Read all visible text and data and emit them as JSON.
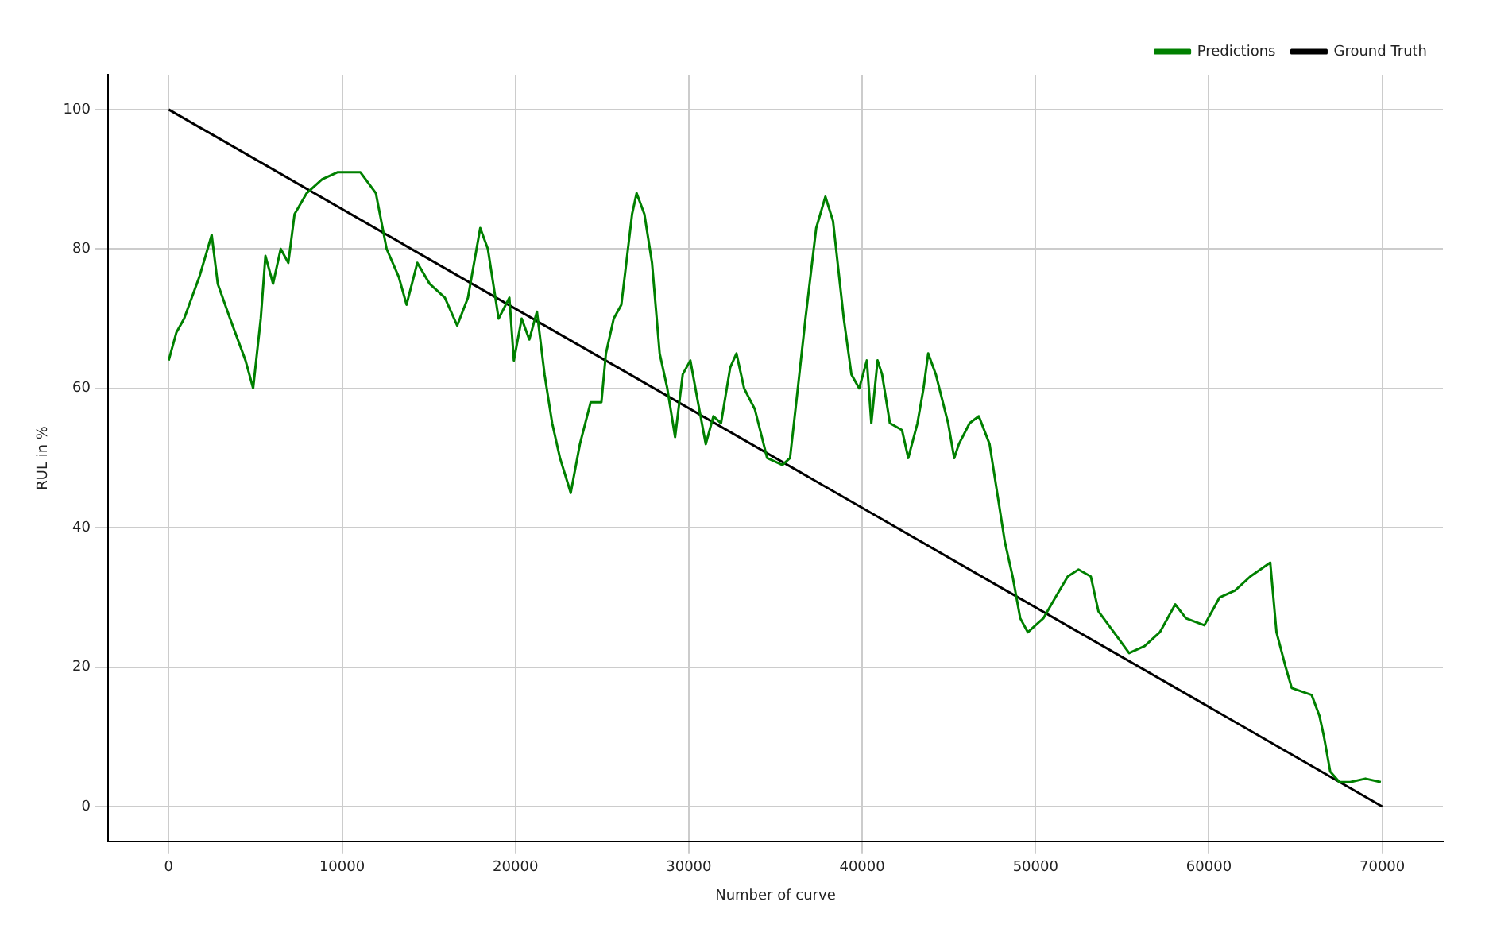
{
  "chart_data": {
    "type": "line",
    "xlabel": "Number of curve",
    "ylabel": "RUL in %",
    "xlim": [
      -3500,
      73500
    ],
    "xticks": [
      0,
      10000,
      20000,
      30000,
      40000,
      50000,
      60000,
      70000
    ],
    "ylim": [
      -5,
      105
    ],
    "yticks": [
      0,
      20,
      40,
      60,
      80,
      100
    ],
    "grid": true,
    "legend": "top right",
    "marker": "none",
    "line_style": "solid",
    "series": [
      {
        "name": "Predictions",
        "color": "#008000",
        "x": [
          0,
          440,
          890,
          1770,
          2480,
          2830,
          3540,
          4430,
          4870,
          5310,
          5580,
          6020,
          6460,
          6900,
          7260,
          7960,
          8850,
          9730,
          11060,
          11950,
          12570,
          13270,
          13720,
          14340,
          15050,
          15930,
          16640,
          17260,
          17970,
          18410,
          19030,
          19650,
          19910,
          20360,
          20800,
          21240,
          21680,
          22120,
          22570,
          23190,
          23720,
          24340,
          24960,
          25220,
          25670,
          26110,
          26730,
          26990,
          27440,
          27880,
          28320,
          28760,
          29210,
          29650,
          30090,
          30530,
          30980,
          31420,
          31860,
          32390,
          32750,
          33190,
          33810,
          34520,
          35400,
          35840,
          36290,
          36730,
          37350,
          37880,
          38320,
          38940,
          39380,
          39830,
          40270,
          40530,
          40890,
          41150,
          41600,
          42300,
          42660,
          43190,
          43540,
          43810,
          44250,
          44960,
          45310,
          45580,
          46200,
          46730,
          47350,
          47790,
          48230,
          48680,
          49120,
          49560,
          50000,
          50450,
          51150,
          51860,
          52480,
          53190,
          53630,
          54520,
          55400,
          56290,
          57170,
          58060,
          58680,
          59740,
          60620,
          61510,
          62390,
          63540,
          63900,
          64430,
          64780,
          65930,
          66380,
          66640,
          67000,
          67530,
          68150,
          69030,
          69920
        ],
        "values": [
          64,
          68,
          70,
          76,
          82,
          75,
          70,
          64,
          60,
          70,
          79,
          75,
          80,
          78,
          85,
          88,
          90,
          91,
          91,
          88,
          80,
          76,
          72,
          78,
          75,
          73,
          69,
          73,
          83,
          80,
          70,
          73,
          64,
          70,
          67,
          71,
          62,
          55,
          50,
          45,
          52,
          58,
          58,
          65,
          70,
          72,
          85,
          88,
          85,
          78,
          65,
          60,
          53,
          62,
          64,
          58,
          52,
          56,
          55,
          63,
          65,
          60,
          57,
          50,
          49,
          50,
          60,
          70,
          83,
          87.5,
          84,
          70,
          62,
          60,
          64,
          55,
          64,
          62,
          55,
          54,
          50,
          55,
          60,
          65,
          62,
          55,
          50,
          52,
          55,
          56,
          52,
          45,
          38,
          33,
          27,
          25,
          26,
          27,
          30,
          33,
          34,
          33,
          28,
          25,
          22,
          23,
          25,
          29,
          27,
          26,
          30,
          31,
          33,
          35,
          25,
          20,
          17,
          16,
          13,
          10,
          5,
          3.5,
          3.5,
          4,
          3.5
        ]
      },
      {
        "name": "Ground Truth",
        "color": "#000000",
        "x": [
          0,
          70000
        ],
        "values": [
          100,
          0
        ]
      }
    ]
  }
}
